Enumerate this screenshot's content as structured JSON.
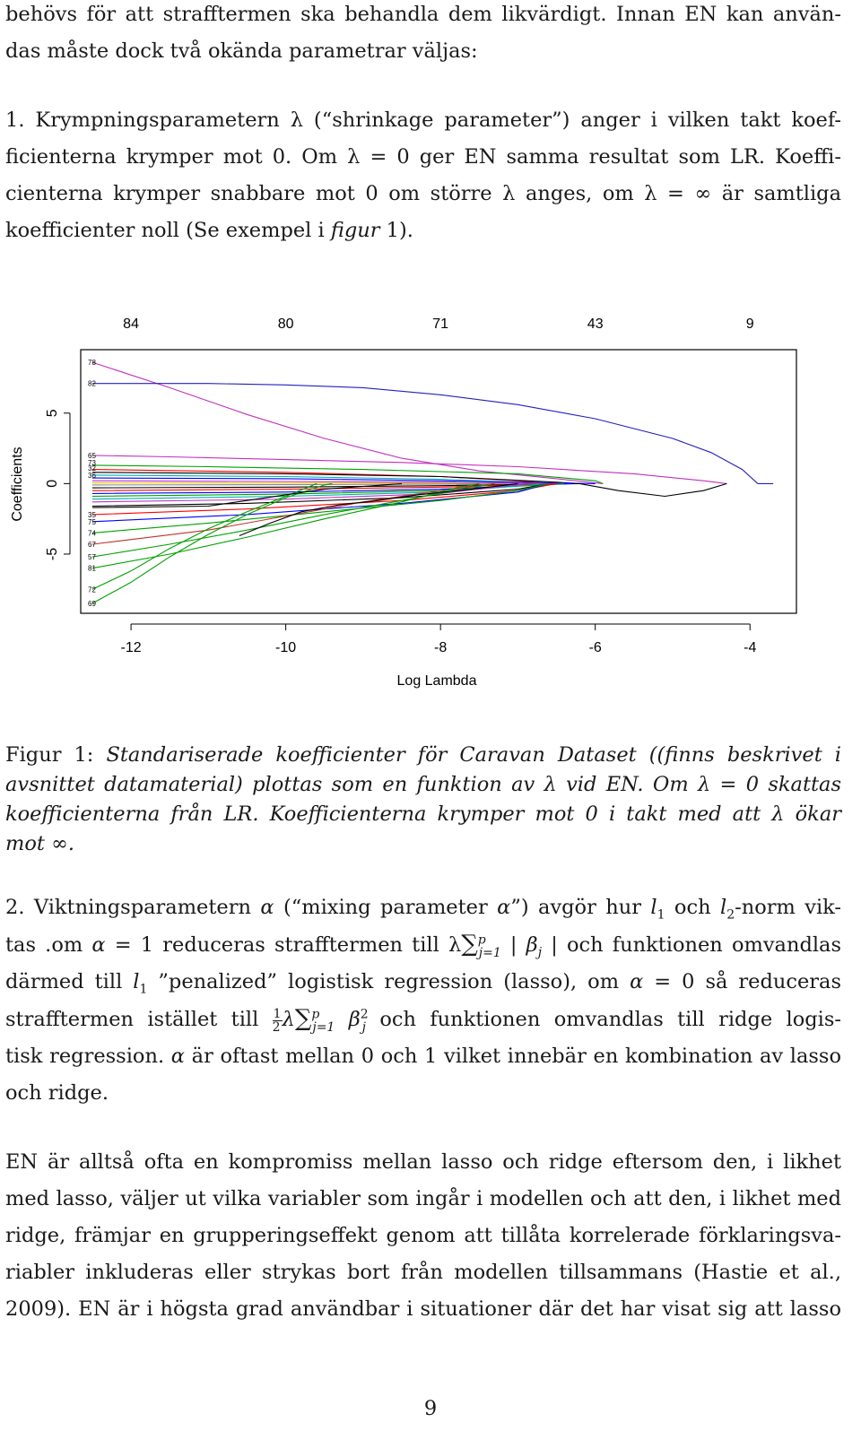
{
  "top_para": {
    "line1": "behövs för att straﬀtermen ska behandla dem likvärdigt. Innan EN kan använ-",
    "line2": "das måste dock två okända parametrar väljas:"
  },
  "item1": {
    "l1": "1. Krympningsparametern λ (“shrinkage parameter”) anger i vilken takt koef-",
    "l2": "ficienterna krymper mot 0. Om λ = 0 ger EN samma resultat som LR. Koeffi-",
    "l3": "cienterna krymper snabbare mot 0 om större λ anges, om λ = ∞ är samtliga",
    "l4a": "koefficienter noll (Se exempel i ",
    "l4b": "figur",
    "l4c": " 1)."
  },
  "chart_data": {
    "type": "line",
    "title": "",
    "xlabel": "Log Lambda",
    "ylabel": "Coefficients",
    "x_ticks": [
      -12,
      -10,
      -8,
      -6,
      -4
    ],
    "y_ticks": [
      -5,
      0,
      5
    ],
    "top_axis": {
      "labels": [
        "84",
        "80",
        "71",
        "43",
        "9"
      ],
      "at_x": [
        -12,
        -10,
        -8,
        -6,
        -4
      ]
    },
    "xlim": [
      -12.65,
      -3.4
    ],
    "ylim": [
      -9.2,
      9.5
    ],
    "start_x": -12.5,
    "series": [
      {
        "label": "78",
        "color": "#c030c0",
        "points": [
          [
            -12.5,
            8.6
          ],
          [
            -11.5,
            6.8
          ],
          [
            -10.5,
            4.9
          ],
          [
            -9.5,
            3.2
          ],
          [
            -8.5,
            1.8
          ],
          [
            -7.5,
            0.9
          ],
          [
            -6.5,
            0.35
          ],
          [
            -5.9,
            0.0
          ]
        ]
      },
      {
        "label": "82",
        "color": "#2020c0",
        "points": [
          [
            -12.5,
            7.1
          ],
          [
            -11,
            7.1
          ],
          [
            -10,
            7.0
          ],
          [
            -9,
            6.8
          ],
          [
            -8,
            6.3
          ],
          [
            -7,
            5.6
          ],
          [
            -6,
            4.6
          ],
          [
            -5,
            3.2
          ],
          [
            -4.5,
            2.2
          ],
          [
            -4.1,
            1.0
          ],
          [
            -3.9,
            0.0
          ],
          [
            -3.7,
            0.0
          ]
        ]
      },
      {
        "label": "65",
        "color": "#c030c0",
        "points": [
          [
            -12.5,
            2.0
          ],
          [
            -11.5,
            1.9
          ],
          [
            -10,
            1.7
          ],
          [
            -8.5,
            1.5
          ],
          [
            -7,
            1.2
          ],
          [
            -5.5,
            0.7
          ],
          [
            -4.6,
            0.2
          ],
          [
            -4.3,
            0.0
          ]
        ]
      },
      {
        "label": "",
        "color": "#00a000",
        "points": [
          [
            -12.5,
            1.3
          ],
          [
            -11,
            1.2
          ],
          [
            -9,
            1.0
          ],
          [
            -7,
            0.7
          ],
          [
            -6,
            0.2
          ],
          [
            -5.9,
            0.0
          ]
        ]
      },
      {
        "label": "",
        "color": "#ff0000",
        "points": [
          [
            -12.5,
            1.0
          ],
          [
            -10,
            0.8
          ],
          [
            -8,
            0.5
          ],
          [
            -7,
            0.2
          ],
          [
            -6.6,
            0.0
          ]
        ]
      },
      {
        "label": "",
        "color": "#000000",
        "points": [
          [
            -12.5,
            0.8
          ],
          [
            -10,
            0.7
          ],
          [
            -8,
            0.5
          ],
          [
            -6.5,
            0.1
          ],
          [
            -6.2,
            0.0
          ]
        ]
      },
      {
        "label": "",
        "color": "#00b0b0",
        "points": [
          [
            -12.5,
            0.6
          ],
          [
            -10,
            0.5
          ],
          [
            -8,
            0.3
          ],
          [
            -7,
            0.1
          ],
          [
            -6.8,
            0.0
          ]
        ]
      },
      {
        "label": "",
        "color": "#0000ff",
        "points": [
          [
            -12.5,
            0.4
          ],
          [
            -10,
            0.35
          ],
          [
            -8,
            0.2
          ],
          [
            -6.5,
            0.05
          ],
          [
            -6.0,
            0.0
          ]
        ]
      },
      {
        "label": "",
        "color": "#c030c0",
        "points": [
          [
            -12.5,
            0.2
          ],
          [
            -10,
            0.15
          ],
          [
            -8,
            0.1
          ],
          [
            -6.4,
            0.0
          ]
        ]
      },
      {
        "label": "",
        "color": "#e0c000",
        "points": [
          [
            -12.5,
            0.05
          ],
          [
            -9,
            0.03
          ],
          [
            -7.5,
            0.0
          ]
        ]
      },
      {
        "label": "",
        "color": "#888888",
        "points": [
          [
            -12.5,
            -0.1
          ],
          [
            -10,
            -0.08
          ],
          [
            -8,
            -0.04
          ],
          [
            -6.7,
            0.0
          ]
        ]
      },
      {
        "label": "",
        "color": "#000000",
        "points": [
          [
            -12.5,
            -0.3
          ],
          [
            -10,
            -0.25
          ],
          [
            -8,
            -0.15
          ],
          [
            -6.2,
            0.0
          ]
        ]
      },
      {
        "label": "",
        "color": "#ff0000",
        "points": [
          [
            -12.5,
            -0.5
          ],
          [
            -10,
            -0.4
          ],
          [
            -8,
            -0.25
          ],
          [
            -6.5,
            0.0
          ]
        ]
      },
      {
        "label": "",
        "color": "#0000ff",
        "points": [
          [
            -12.5,
            -0.7
          ],
          [
            -10,
            -0.6
          ],
          [
            -8,
            -0.4
          ],
          [
            -6.3,
            0.0
          ]
        ]
      },
      {
        "label": "",
        "color": "#00a000",
        "points": [
          [
            -12.5,
            -0.9
          ],
          [
            -10,
            -0.75
          ],
          [
            -8,
            -0.5
          ],
          [
            -6.4,
            0.0
          ]
        ]
      },
      {
        "label": "",
        "color": "#00b0b0",
        "points": [
          [
            -12.5,
            -1.1
          ],
          [
            -10,
            -0.9
          ],
          [
            -8,
            -0.6
          ],
          [
            -6.6,
            0.0
          ]
        ]
      },
      {
        "label": "",
        "color": "#c030c0",
        "points": [
          [
            -12.5,
            -1.3
          ],
          [
            -10,
            -1.1
          ],
          [
            -8,
            -0.7
          ],
          [
            -6.9,
            0.0
          ]
        ]
      },
      {
        "label": "",
        "color": "#000000",
        "points": [
          [
            -12.5,
            -1.6
          ],
          [
            -10.5,
            -1.4
          ],
          [
            -8.5,
            -1.0
          ],
          [
            -7,
            -0.4
          ],
          [
            -6.6,
            0.0
          ]
        ]
      },
      {
        "label": "35",
        "color": "#ff0000",
        "points": [
          [
            -12.5,
            -2.2
          ],
          [
            -10.5,
            -1.8
          ],
          [
            -8.5,
            -1.2
          ],
          [
            -7,
            -0.5
          ],
          [
            -6.5,
            0.0
          ]
        ]
      },
      {
        "label": "75",
        "color": "#0000ff",
        "points": [
          [
            -12.5,
            -2.7
          ],
          [
            -10.5,
            -2.2
          ],
          [
            -8.5,
            -1.4
          ],
          [
            -7,
            -0.6
          ],
          [
            -6.6,
            0.0
          ]
        ]
      },
      {
        "label": "74",
        "color": "#00a000",
        "points": [
          [
            -12.5,
            -3.5
          ],
          [
            -11,
            -2.8
          ],
          [
            -9.5,
            -2.0
          ],
          [
            -8,
            -1.2
          ],
          [
            -7,
            -0.5
          ],
          [
            -6.6,
            0.0
          ]
        ]
      },
      {
        "label": "67",
        "color": "#c03030",
        "points": [
          [
            -12.5,
            -4.3
          ],
          [
            -11,
            -3.3
          ],
          [
            -10,
            -2.3
          ],
          [
            -9,
            -1.3
          ],
          [
            -8,
            -0.5
          ],
          [
            -7.3,
            0.0
          ]
        ]
      },
      {
        "label": "57",
        "color": "#00a000",
        "points": [
          [
            -12.5,
            -5.2
          ],
          [
            -11.5,
            -4.3
          ],
          [
            -10.5,
            -3.3
          ],
          [
            -9.5,
            -2.2
          ],
          [
            -8.5,
            -1.2
          ],
          [
            -7.6,
            -0.3
          ],
          [
            -7.3,
            0.0
          ]
        ]
      },
      {
        "label": "81",
        "color": "#00a000",
        "points": [
          [
            -12.5,
            -6.0
          ],
          [
            -11.5,
            -5.0
          ],
          [
            -10.5,
            -3.8
          ],
          [
            -9.5,
            -2.5
          ],
          [
            -8.5,
            -1.3
          ],
          [
            -7.8,
            -0.3
          ],
          [
            -7.5,
            0.0
          ]
        ]
      },
      {
        "label": "72",
        "color": "#00a000",
        "points": [
          [
            -12.5,
            -7.5
          ],
          [
            -12,
            -6.2
          ],
          [
            -11.5,
            -4.6
          ],
          [
            -11,
            -3.2
          ],
          [
            -10.5,
            -2.0
          ],
          [
            -10,
            -0.9
          ],
          [
            -9.6,
            0.0
          ]
        ]
      },
      {
        "label": "69",
        "color": "#00a000",
        "points": [
          [
            -12.5,
            -8.5
          ],
          [
            -12,
            -7.0
          ],
          [
            -11.5,
            -5.2
          ],
          [
            -11,
            -3.6
          ],
          [
            -10.5,
            -2.2
          ],
          [
            -10,
            -1.0
          ],
          [
            -9.5,
            -0.1
          ],
          [
            -9.4,
            0.0
          ]
        ]
      },
      {
        "label": "",
        "color": "#000000",
        "points": [
          [
            -12.5,
            -1.7
          ],
          [
            -11,
            -1.6
          ],
          [
            -10.5,
            -1.2
          ],
          [
            -10,
            -0.8
          ],
          [
            -9.5,
            -0.4
          ],
          [
            -9,
            -0.2
          ],
          [
            -8.5,
            0.0
          ]
        ]
      },
      {
        "label": "",
        "color": "#000000",
        "points": [
          [
            -10.6,
            -3.7
          ],
          [
            -10.2,
            -2.8
          ],
          [
            -9.8,
            -2.0
          ],
          [
            -9.3,
            -1.5
          ],
          [
            -8.8,
            -1.2
          ],
          [
            -8.3,
            -0.8
          ],
          [
            -7.6,
            -0.4
          ],
          [
            -7,
            0.0
          ]
        ]
      },
      {
        "label": "",
        "color": "#000000",
        "points": [
          [
            -6.2,
            0.0
          ],
          [
            -5.7,
            -0.5
          ],
          [
            -5.1,
            -0.9
          ],
          [
            -4.6,
            -0.5
          ],
          [
            -4.3,
            0.0
          ]
        ]
      }
    ],
    "left_labels": [
      {
        "text": "78",
        "y": 8.6
      },
      {
        "text": "82",
        "y": 7.1
      },
      {
        "text": "65",
        "y": 2.0
      },
      {
        "text": "73",
        "y": 1.5
      },
      {
        "text": "32",
        "y": 1.1
      },
      {
        "text": "36",
        "y": 0.6
      },
      {
        "text": "35",
        "y": -2.2
      },
      {
        "text": "75",
        "y": -2.7
      },
      {
        "text": "74",
        "y": -3.5
      },
      {
        "text": "67",
        "y": -4.3
      },
      {
        "text": "57",
        "y": -5.2
      },
      {
        "text": "81",
        "y": -6.0
      },
      {
        "text": "72",
        "y": -7.5
      },
      {
        "text": "69",
        "y": -8.5
      }
    ]
  },
  "caption": {
    "label": "Figur 1:",
    "l1": "Standariserade koefficienter för Caravan Dataset ((finns beskrivet i",
    "l2": "avsnittet datamaterial) plottas som en funktion av λ vid EN. Om λ = 0 skattas",
    "l3": "koefficienterna från LR. Koefficienterna krymper mot 0 i takt med att λ ökar",
    "l4": "mot ∞."
  },
  "item2": {
    "l1a": "2. Viktningsparametern ",
    "alpha": "α",
    "l1b": " (“mixing parameter ",
    "l1c": "”) avgör hur ",
    "l_sym": "l",
    "sub1": "1",
    "l1d": " och ",
    "sub2": "2",
    "l1e": "-norm vik-",
    "l2a": "tas .om ",
    "l2b": " = 1 reduceras straﬀtermen till λ",
    "sum": "∑",
    "sup_p": "p",
    "sub_j1": "j=1",
    "beta": "β",
    "sub_j": "j",
    "l2c": "och funktionen omvandlas",
    "l3a": "därmed till ",
    "l3b": " ”penalized” logistisk regression (lasso), om ",
    "l3c": " = 0 så reduceras",
    "l4a": "straﬀtermen istället till ",
    "frac_num": "1",
    "frac_den": "2",
    "lambda": "λ",
    "sup_2": "2",
    "l4b": " och funktionen omvandlas till ridge logis-",
    "l5a": "tisk regression. ",
    "l5b": " är oftast mellan 0 och 1 vilket innebär en kombination av lasso",
    "l6": "och ridge."
  },
  "bottom_para": {
    "l1": "EN är alltså ofta en kompromiss mellan lasso och ridge eftersom den, i likhet",
    "l2": "med lasso, väljer ut vilka variabler som ingår i modellen och att den, i likhet med",
    "l3": "ridge, främjar en grupperingseﬀekt genom att tillåta korrelerade förklaringsva-",
    "l4": "riabler inkluderas eller strykas bort från modellen tillsammans (Hastie et al.,",
    "l5": "2009). EN är i högsta grad användbar i situationer där det har visat sig att lasso"
  },
  "page_number": "9"
}
